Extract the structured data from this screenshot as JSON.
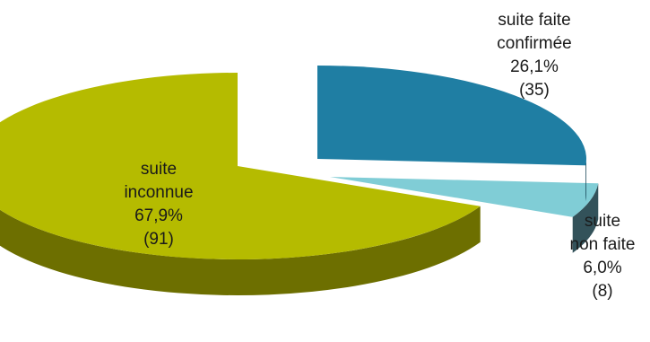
{
  "chart_data": {
    "type": "pie",
    "style": "3d-exploded",
    "slices": [
      {
        "label_lines": [
          "suite faite",
          "confirmée"
        ],
        "percent_label": "26,1%",
        "count_label": "(35)",
        "value": 35,
        "percent": 26.1,
        "color": "#1f7ea3",
        "side_color": "#0f3d4f"
      },
      {
        "label_lines": [
          "suite",
          "non faite"
        ],
        "percent_label": "6,0%",
        "count_label": "(8)",
        "value": 8,
        "percent": 6.0,
        "color": "#80cdd6",
        "side_color": "#33525a"
      },
      {
        "label_lines": [
          "suite",
          "inconnue"
        ],
        "percent_label": "67,9%",
        "count_label": "(91)",
        "value": 91,
        "percent": 67.9,
        "color": "#b5bb00",
        "side_color": "#6d6f00"
      }
    ]
  }
}
